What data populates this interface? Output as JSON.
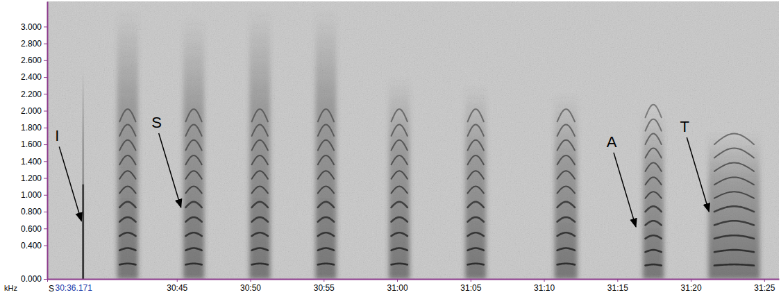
{
  "chart_data": {
    "type": "spectrogram",
    "xlabel": "S",
    "ylabel": "kHz",
    "xlim": [
      1836.171,
      1886.0
    ],
    "ylim": [
      0,
      3.3
    ],
    "xticks": [
      {
        "value": 1836.171,
        "label": "30:36.171"
      },
      {
        "value": 1845,
        "label": "30:45"
      },
      {
        "value": 1850,
        "label": "30:50"
      },
      {
        "value": 1855,
        "label": "30:55"
      },
      {
        "value": 1860,
        "label": "31:00"
      },
      {
        "value": 1865,
        "label": "31:05"
      },
      {
        "value": 1870,
        "label": "31:10"
      },
      {
        "value": 1875,
        "label": "31:15"
      },
      {
        "value": 1880,
        "label": "31:20"
      },
      {
        "value": 1885,
        "label": "31:25"
      }
    ],
    "yticks": [
      {
        "value": 0,
        "label": "0.000"
      },
      {
        "value": 0.4,
        "label": "0.400"
      },
      {
        "value": 0.6,
        "label": "0.600"
      },
      {
        "value": 0.8,
        "label": "0.800"
      },
      {
        "value": 1.0,
        "label": "1.000"
      },
      {
        "value": 1.2,
        "label": "1.200"
      },
      {
        "value": 1.4,
        "label": "1.400"
      },
      {
        "value": 1.6,
        "label": "1.600"
      },
      {
        "value": 1.8,
        "label": "1.800"
      },
      {
        "value": 2.0,
        "label": "2.000"
      },
      {
        "value": 2.2,
        "label": "2.200"
      },
      {
        "value": 2.4,
        "label": "2.400"
      },
      {
        "value": 2.6,
        "label": "2.600"
      },
      {
        "value": 2.8,
        "label": "2.800"
      },
      {
        "value": 3.0,
        "label": "3.000"
      }
    ],
    "calls": [
      {
        "type": "click",
        "start": 1838.55,
        "end": 1838.68,
        "fmax": 2.5
      },
      {
        "type": "harmonic",
        "start": 1841.1,
        "end": 1842.2,
        "f0": 0.17,
        "fmax": 1.9,
        "fspread": 3.2
      },
      {
        "type": "harmonic",
        "start": 1845.6,
        "end": 1846.7,
        "f0": 0.17,
        "fmax": 1.95,
        "fspread": 3.1
      },
      {
        "type": "harmonic",
        "start": 1850.1,
        "end": 1851.2,
        "f0": 0.17,
        "fmax": 1.9,
        "fspread": 3.2
      },
      {
        "type": "harmonic",
        "start": 1854.6,
        "end": 1855.7,
        "f0": 0.17,
        "fmax": 1.9,
        "fspread": 3.2
      },
      {
        "type": "harmonic",
        "start": 1859.6,
        "end": 1860.7,
        "f0": 0.17,
        "fmax": 1.9,
        "fspread": 2.4
      },
      {
        "type": "harmonic",
        "start": 1864.8,
        "end": 1865.9,
        "f0": 0.17,
        "fmax": 1.9,
        "fspread": 2.3
      },
      {
        "type": "harmonic",
        "start": 1870.9,
        "end": 1872.1,
        "f0": 0.17,
        "fmax": 1.9,
        "fspread": 2.2
      },
      {
        "type": "harmonic",
        "start": 1876.9,
        "end": 1878.0,
        "f0": 0.16,
        "fmax": 1.95,
        "fspread": 2.0
      },
      {
        "type": "harmonic",
        "start": 1881.6,
        "end": 1884.3,
        "f0": 0.16,
        "fmax": 1.75,
        "fspread": 1.75
      }
    ],
    "annotations": [
      {
        "text": "I",
        "x": 1838.5,
        "y": 0.69
      },
      {
        "text": "S",
        "x": 1845.28,
        "y": 0.85
      },
      {
        "text": "A",
        "x": 1876.26,
        "y": 0.62
      },
      {
        "text": "T",
        "x": 1881.24,
        "y": 0.8
      }
    ]
  }
}
